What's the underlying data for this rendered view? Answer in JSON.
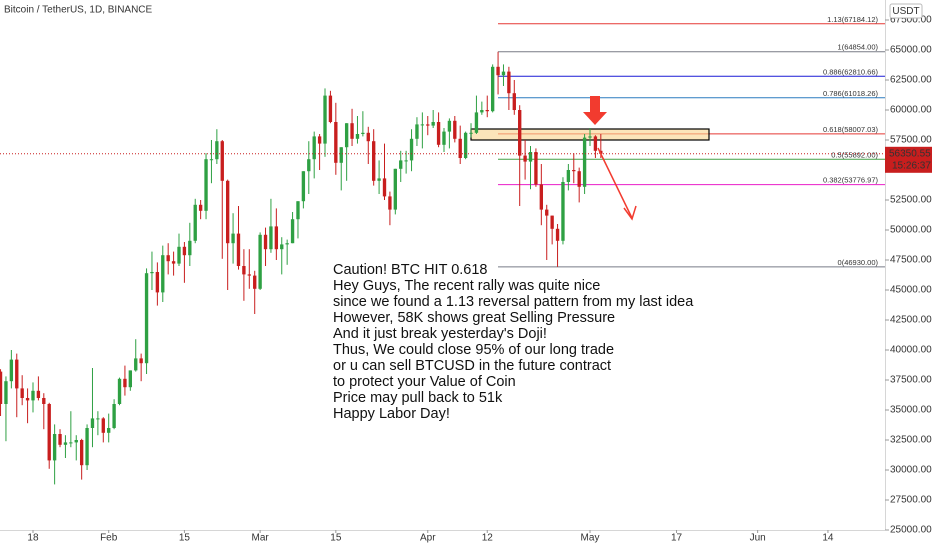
{
  "chart_data": {
    "type": "candlestick",
    "title": "Bitcoin / TetherUS, 1D, BINANCE",
    "currency": "USDT",
    "countdown": "15:26:37",
    "up_color": "#2ea043",
    "down_color": "#c81e1e",
    "xlim": [
      -0.1,
      163.55
    ],
    "ylim": [
      25000,
      69167
    ],
    "xticks": [
      {
        "value": 6,
        "label": "18"
      },
      {
        "value": 20,
        "label": "Feb"
      },
      {
        "value": 34,
        "label": "15"
      },
      {
        "value": 48,
        "label": "Mar"
      },
      {
        "value": 62,
        "label": "15"
      },
      {
        "value": 79,
        "label": "Apr"
      },
      {
        "value": 90,
        "label": "12"
      },
      {
        "value": 109,
        "label": "May"
      },
      {
        "value": 125,
        "label": "17"
      },
      {
        "value": 140,
        "label": "Jun"
      },
      {
        "value": 153,
        "label": "14"
      }
    ],
    "yticks": [
      {
        "value": 25000,
        "label": "25000.00"
      },
      {
        "value": 27500,
        "label": "27500.00"
      },
      {
        "value": 30000,
        "label": "30000.00"
      },
      {
        "value": 32500,
        "label": "32500.00"
      },
      {
        "value": 35000,
        "label": "35000.00"
      },
      {
        "value": 37500,
        "label": "37500.00"
      },
      {
        "value": 40000,
        "label": "40000.00"
      },
      {
        "value": 42500,
        "label": "42500.00"
      },
      {
        "value": 45000,
        "label": "45000.00"
      },
      {
        "value": 47500,
        "label": "47500.00"
      },
      {
        "value": 50000,
        "label": "50000.00"
      },
      {
        "value": 52500,
        "label": "52500.00"
      },
      {
        "value": 55000,
        "label": "55000.00"
      },
      {
        "value": 57500,
        "label": "57500.00"
      },
      {
        "value": 60000,
        "label": "60000.00"
      },
      {
        "value": 62500,
        "label": "62500.00"
      },
      {
        "value": 65000,
        "label": "65000.00"
      },
      {
        "value": 67500,
        "label": "67500.00"
      }
    ],
    "ohlc": [
      [
        38200,
        38400,
        34500,
        35500
      ],
      [
        35500,
        37800,
        32400,
        37400
      ],
      [
        37400,
        40000,
        36800,
        39200
      ],
      [
        39200,
        39700,
        34400,
        36800
      ],
      [
        36800,
        37900,
        35400,
        36000
      ],
      [
        36000,
        36800,
        33900,
        35800
      ],
      [
        35800,
        37300,
        34800,
        36600
      ],
      [
        36600,
        37800,
        35800,
        36000
      ],
      [
        36000,
        36400,
        33400,
        35500
      ],
      [
        35500,
        35600,
        30100,
        30800
      ],
      [
        30800,
        33800,
        28800,
        33000
      ],
      [
        33000,
        33400,
        31900,
        32100
      ],
      [
        32100,
        32900,
        31000,
        32300
      ],
      [
        32300,
        34900,
        31900,
        32300
      ],
      [
        32300,
        32900,
        30800,
        32500
      ],
      [
        32500,
        32600,
        29200,
        30400
      ],
      [
        30400,
        33800,
        30000,
        33500
      ],
      [
        33500,
        38500,
        31900,
        34300
      ],
      [
        34300,
        34900,
        32900,
        34300
      ],
      [
        34300,
        34400,
        32300,
        33100
      ],
      [
        33100,
        34700,
        32300,
        33500
      ],
      [
        33500,
        35900,
        33400,
        35500
      ],
      [
        35500,
        37700,
        35400,
        37600
      ],
      [
        37600,
        38700,
        36200,
        36900
      ],
      [
        36900,
        38300,
        36600,
        38300
      ],
      [
        38300,
        40900,
        38200,
        39300
      ],
      [
        39300,
        39700,
        37400,
        38900
      ],
      [
        38900,
        46800,
        38000,
        46400
      ],
      [
        46400,
        48200,
        45000,
        46500
      ],
      [
        46500,
        47300,
        43700,
        44800
      ],
      [
        44800,
        48700,
        44000,
        47900
      ],
      [
        47900,
        48900,
        46300,
        47400
      ],
      [
        47400,
        48200,
        46200,
        47200
      ],
      [
        47200,
        49700,
        47000,
        48600
      ],
      [
        48600,
        49000,
        45600,
        47900
      ],
      [
        47900,
        50600,
        47000,
        49100
      ],
      [
        49100,
        52600,
        48900,
        52100
      ],
      [
        52100,
        52500,
        50900,
        51600
      ],
      [
        51600,
        56400,
        50900,
        55900
      ],
      [
        55900,
        57500,
        53900,
        55900
      ],
      [
        55900,
        58400,
        55500,
        57400
      ],
      [
        57400,
        57500,
        47600,
        54100
      ],
      [
        54100,
        54200,
        45000,
        48900
      ],
      [
        48900,
        51400,
        47200,
        49700
      ],
      [
        49700,
        52000,
        46700,
        47000
      ],
      [
        47000,
        48400,
        44100,
        46300
      ],
      [
        46300,
        48400,
        45100,
        46200
      ],
      [
        46200,
        46600,
        43000,
        45100
      ],
      [
        45100,
        49800,
        45000,
        49600
      ],
      [
        49600,
        50200,
        47000,
        48400
      ],
      [
        48400,
        52600,
        48100,
        50300
      ],
      [
        50300,
        51800,
        47500,
        48400
      ],
      [
        48400,
        49400,
        46300,
        48800
      ],
      [
        48800,
        49200,
        47100,
        48900
      ],
      [
        48900,
        51500,
        48900,
        50900
      ],
      [
        50900,
        52400,
        49300,
        52400
      ],
      [
        52400,
        54900,
        51800,
        54900
      ],
      [
        54900,
        57400,
        53000,
        55900
      ],
      [
        55900,
        58200,
        54300,
        57800
      ],
      [
        57800,
        58000,
        55000,
        57200
      ],
      [
        57200,
        61800,
        56100,
        61200
      ],
      [
        61200,
        61600,
        58900,
        59000
      ],
      [
        59000,
        60600,
        54600,
        55600
      ],
      [
        55600,
        56900,
        53300,
        56900
      ],
      [
        56900,
        58900,
        54100,
        58900
      ],
      [
        58900,
        60100,
        57000,
        57600
      ],
      [
        57600,
        59500,
        57200,
        58000
      ],
      [
        58000,
        59900,
        57800,
        58100
      ],
      [
        58100,
        58600,
        55500,
        57400
      ],
      [
        57400,
        58400,
        53700,
        54100
      ],
      [
        54100,
        55800,
        53000,
        54300
      ],
      [
        54300,
        57200,
        52500,
        52800
      ],
      [
        52800,
        53200,
        50400,
        51700
      ],
      [
        51700,
        55100,
        51300,
        55100
      ],
      [
        55100,
        56600,
        54000,
        55800
      ],
      [
        55800,
        56600,
        54700,
        55800
      ],
      [
        55800,
        58400,
        54900,
        57600
      ],
      [
        57600,
        59400,
        57000,
        58800
      ],
      [
        58800,
        59800,
        56800,
        58800
      ],
      [
        58800,
        59500,
        57900,
        58700
      ],
      [
        58700,
        60000,
        58500,
        59000
      ],
      [
        59000,
        59800,
        56900,
        57100
      ],
      [
        57100,
        58500,
        56500,
        58200
      ],
      [
        58200,
        59300,
        56800,
        59100
      ],
      [
        59100,
        59500,
        57300,
        57600
      ],
      [
        57600,
        58700,
        55500,
        56000
      ],
      [
        56000,
        58200,
        55900,
        58100
      ],
      [
        58100,
        58900,
        57700,
        58100
      ],
      [
        58100,
        61200,
        58000,
        59800
      ],
      [
        59800,
        60700,
        59600,
        60000
      ],
      [
        60000,
        61200,
        59400,
        59900
      ],
      [
        59900,
        63800,
        59800,
        63600
      ],
      [
        63600,
        64854,
        61300,
        62900
      ],
      [
        62900,
        63800,
        62000,
        63200
      ],
      [
        63200,
        63600,
        60000,
        61400
      ],
      [
        61400,
        62500,
        59600,
        60000
      ],
      [
        60000,
        60400,
        52000,
        56200
      ],
      [
        56200,
        57500,
        54200,
        55700
      ],
      [
        55700,
        57000,
        53400,
        56500
      ],
      [
        56500,
        56800,
        53600,
        53800
      ],
      [
        53800,
        55500,
        50400,
        51700
      ],
      [
        51700,
        52100,
        47500,
        51200
      ],
      [
        51200,
        51200,
        48800,
        50100
      ],
      [
        50100,
        50500,
        46930,
        49100
      ],
      [
        49100,
        54400,
        48800,
        54000
      ],
      [
        54000,
        55500,
        53300,
        55000
      ],
      [
        55000,
        56400,
        53900,
        54900
      ],
      [
        54900,
        55200,
        52300,
        53600
      ],
      [
        53600,
        58000,
        53000,
        57700
      ],
      [
        57700,
        58500,
        57000,
        57800
      ],
      [
        57800,
        57900,
        56000,
        56600
      ],
      [
        56600,
        58000,
        56000,
        56350.55
      ]
    ],
    "fib_levels": [
      {
        "label": "1.13(67184.12)",
        "value": 67184.12,
        "color": "#e53935"
      },
      {
        "label": "1(64854.00)",
        "value": 64854,
        "color": "#787b86"
      },
      {
        "label": "0.886(62810.66)",
        "value": 62810.66,
        "color": "#1a1ad6"
      },
      {
        "label": "0.786(61018.26)",
        "value": 61018.26,
        "color": "#2b7bbf"
      },
      {
        "label": "0.618(58007.03)",
        "value": 58007.03,
        "color": "#e53935"
      },
      {
        "label": "0.5(55892.00)",
        "value": 55892,
        "color": "#43a047"
      },
      {
        "label": "0.382(53776.97)",
        "value": 53776.97,
        "color": "#e91ec8"
      },
      {
        "label": "0(46930.00)",
        "value": 46930,
        "color": "#787b86"
      }
    ],
    "annotation": [
      "Caution! BTC HIT 0.618",
      "Hey Guys, The recent rally was quite nice",
      "since we found a 1.13 reversal pattern from my last idea",
      "However, 58K shows great Selling Pressure",
      "And it just break yesterday's Doji!",
      "Thus, We could close 95% of our long trade",
      "or u can sell BTCUSD in the future contract",
      "to protect your Value of Coin",
      "Price may pull back to 51k",
      "Happy Labor Day!"
    ]
  }
}
